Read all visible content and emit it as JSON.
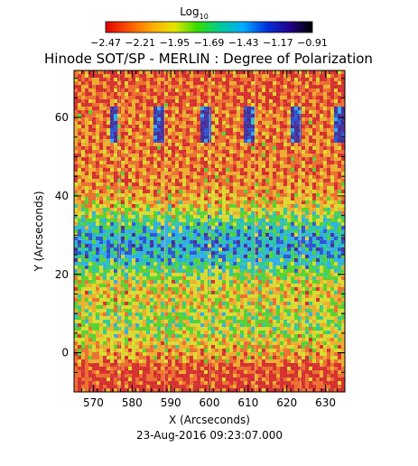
{
  "chart_data": {
    "type": "heatmap",
    "title": "Hinode SOT/SP - MERLIN : Degree of Polarization",
    "xlabel": "X (Arcseconds)",
    "ylabel": "Y (Arcseconds)",
    "timestamp": "23-Aug-2016 09:23:07.000",
    "xlim": [
      565,
      635
    ],
    "ylim": [
      -10,
      72
    ],
    "x_ticks": [
      570,
      580,
      590,
      600,
      610,
      620,
      630
    ],
    "y_ticks": [
      0,
      20,
      40,
      60
    ],
    "colorbar": {
      "title_main": "Log",
      "title_sub": "10",
      "min": -2.47,
      "max": -0.91,
      "tick_labels": [
        "-2.47",
        "-2.21",
        "-1.95",
        "-1.69",
        "-1.43",
        "-1.17",
        "-0.91"
      ],
      "colors": [
        "#e00000",
        "#ff5500",
        "#ffaa00",
        "#e6e600",
        "#33dd00",
        "#00cc99",
        "#00aaff",
        "#0033dd",
        "#22008c",
        "#000000"
      ]
    },
    "notes": "Strip-mosaic heatmap: 5 repeated slit-scan strips; high polarization (blue/purple) band near Y=20-40 and small patch near X=575-632, Y=55-62; low (red/orange) near top and bottom."
  }
}
